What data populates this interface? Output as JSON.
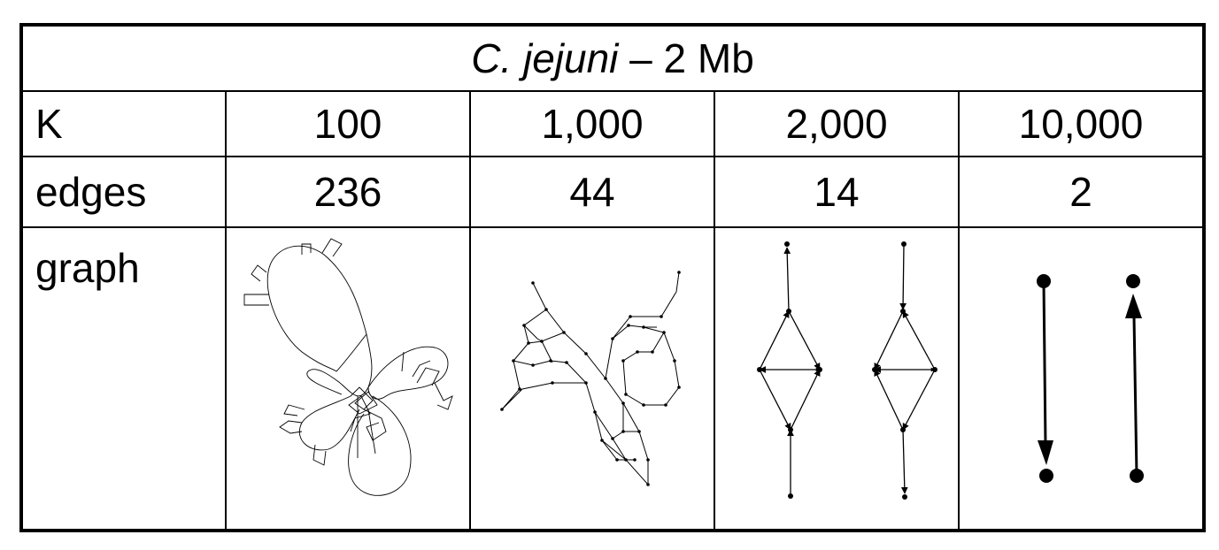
{
  "table": {
    "title_species": "C. jejuni",
    "title_suffix": " – 2 Mb",
    "row_labels": {
      "k": "K",
      "edges": "edges",
      "graph": "graph"
    },
    "k_values": [
      "100",
      "1,000",
      "2,000",
      "10,000"
    ],
    "edge_values": [
      "236",
      "44",
      "14",
      "2"
    ]
  },
  "graphs": [
    {
      "k": "100",
      "edges": 236,
      "style": "dense tangled loops"
    },
    {
      "k": "1,000",
      "edges": 44,
      "style": "branching network with dots"
    },
    {
      "k": "2,000",
      "edges": 14,
      "style": "two diamond components with arrows"
    },
    {
      "k": "10,000",
      "edges": 2,
      "style": "two single arrows"
    }
  ],
  "colors": {
    "line": "#000000",
    "background": "#ffffff"
  }
}
